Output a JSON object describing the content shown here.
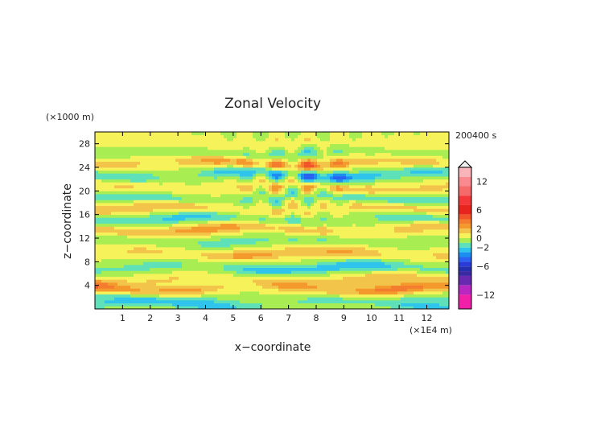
{
  "chart_data": {
    "type": "heatmap",
    "title": "Zonal Velocity",
    "xlabel": "x−coordinate",
    "ylabel": "z−coordinate",
    "x_unit": "(×1E4 m)",
    "y_unit": "(×1000 m)",
    "time_label": "200400 s",
    "xlim": [
      0,
      12.8
    ],
    "ylim": [
      0,
      30
    ],
    "x_ticks": [
      "1",
      "2",
      "3",
      "4",
      "5",
      "6",
      "7",
      "8",
      "9",
      "10",
      "11",
      "12"
    ],
    "y_ticks": [
      "4",
      "8",
      "12",
      "16",
      "20",
      "24",
      "28"
    ],
    "grid": false,
    "colorbar": {
      "tick_labels": [
        "12",
        "6",
        "2",
        "0",
        "−2",
        "−6",
        "−12"
      ],
      "tick_values": [
        12,
        6,
        2,
        0,
        -2,
        -6,
        -12
      ],
      "levels": [
        {
          "lo": 13,
          "hi": 15,
          "color": "#f8b4b8"
        },
        {
          "lo": 11,
          "hi": 13,
          "color": "#f88a90"
        },
        {
          "lo": 9,
          "hi": 11,
          "color": "#f56a6a"
        },
        {
          "lo": 7,
          "hi": 9,
          "color": "#f23838"
        },
        {
          "lo": 5,
          "hi": 7,
          "color": "#e8241e"
        },
        {
          "lo": 4,
          "hi": 5,
          "color": "#f0562a"
        },
        {
          "lo": 3,
          "hi": 4,
          "color": "#f47c2e"
        },
        {
          "lo": 2,
          "hi": 3,
          "color": "#f49a2c"
        },
        {
          "lo": 1,
          "hi": 2,
          "color": "#f3c44a"
        },
        {
          "lo": 0,
          "hi": 1,
          "color": "#f6f25a"
        },
        {
          "lo": -1,
          "hi": 0,
          "color": "#a8ee52"
        },
        {
          "lo": -2,
          "hi": -1,
          "color": "#5ee0b8"
        },
        {
          "lo": -3,
          "hi": -2,
          "color": "#2fc4ec"
        },
        {
          "lo": -4,
          "hi": -3,
          "color": "#1c8ef0"
        },
        {
          "lo": -5,
          "hi": -4,
          "color": "#2a62f2"
        },
        {
          "lo": -6,
          "hi": -5,
          "color": "#2a3cd8"
        },
        {
          "lo": -7,
          "hi": -6,
          "color": "#2430b0"
        },
        {
          "lo": -8,
          "hi": -7,
          "color": "#3a2aa2"
        },
        {
          "lo": -10,
          "hi": -8,
          "color": "#6a2ab0"
        },
        {
          "lo": -12,
          "hi": -10,
          "color": "#b828c0"
        },
        {
          "lo": -15,
          "hi": -12,
          "color": "#f020a8"
        }
      ]
    },
    "bands": [
      {
        "z": 0.8,
        "amp": -2.0
      },
      {
        "z": 1.8,
        "amp": -1.0
      },
      {
        "z": 3.5,
        "amp": 2.8
      },
      {
        "z": 5.0,
        "amp": 1.5
      },
      {
        "z": 7.0,
        "amp": -2.5
      },
      {
        "z": 9.5,
        "amp": 2.0
      },
      {
        "z": 11.5,
        "amp": -1.2
      },
      {
        "z": 13.5,
        "amp": 2.2
      },
      {
        "z": 15.3,
        "amp": -2.0
      },
      {
        "z": 17.0,
        "amp": 1.8
      },
      {
        "z": 18.8,
        "amp": -1.8
      },
      {
        "z": 20.5,
        "amp": 1.5
      },
      {
        "z": 22.8,
        "amp": -3.0
      },
      {
        "z": 24.8,
        "amp": 2.6
      },
      {
        "z": 26.5,
        "amp": -1.2
      },
      {
        "z": 28.0,
        "amp": 0.8
      }
    ]
  }
}
